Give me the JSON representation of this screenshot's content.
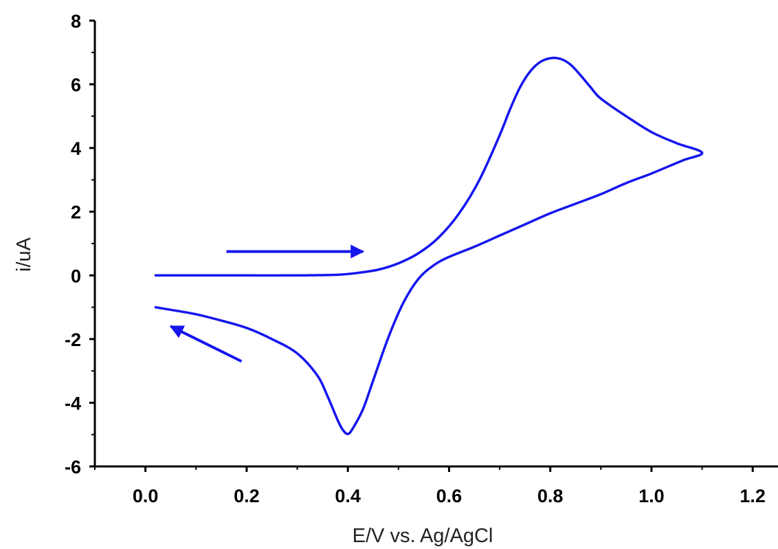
{
  "chart_data": {
    "type": "line",
    "title": "",
    "xlabel": "E/V vs. Ag/AgCl",
    "ylabel": "i/uA",
    "xlim": [
      -0.1,
      1.25
    ],
    "ylim": [
      -6,
      8
    ],
    "x_ticks": [
      "0.0",
      "0.2",
      "0.4",
      "0.6",
      "0.8",
      "1.0",
      "1.2"
    ],
    "y_ticks": [
      "-6",
      "-4",
      "-2",
      "0",
      "2",
      "4",
      "6",
      "8"
    ],
    "grid": false,
    "legend": "none",
    "series": [
      {
        "color": "#1515ee",
        "x": [
          0.02,
          0.1,
          0.2,
          0.3,
          0.38,
          0.42,
          0.46,
          0.5,
          0.54,
          0.58,
          0.62,
          0.66,
          0.7,
          0.72,
          0.74,
          0.76,
          0.78,
          0.8,
          0.82,
          0.84,
          0.86,
          0.88,
          0.9,
          0.95,
          1.0,
          1.05,
          1.1,
          1.06,
          1.0,
          0.95,
          0.9,
          0.85,
          0.8,
          0.75,
          0.7,
          0.65,
          0.6,
          0.57,
          0.54,
          0.51,
          0.48,
          0.45,
          0.43,
          0.41,
          0.4,
          0.39,
          0.38,
          0.36,
          0.34,
          0.3,
          0.25,
          0.2,
          0.15,
          0.1,
          0.05,
          0.02
        ],
        "y": [
          0.0,
          0.0,
          0.0,
          0.0,
          0.02,
          0.08,
          0.18,
          0.38,
          0.7,
          1.2,
          1.95,
          3.0,
          4.4,
          5.2,
          5.9,
          6.4,
          6.7,
          6.82,
          6.8,
          6.62,
          6.28,
          5.9,
          5.55,
          5.0,
          4.5,
          4.15,
          3.85,
          3.6,
          3.2,
          2.9,
          2.55,
          2.25,
          1.95,
          1.6,
          1.25,
          0.9,
          0.58,
          0.32,
          -0.1,
          -0.85,
          -1.95,
          -3.3,
          -4.2,
          -4.8,
          -4.98,
          -4.85,
          -4.55,
          -3.8,
          -3.15,
          -2.45,
          -2.0,
          -1.65,
          -1.42,
          -1.22,
          -1.08,
          -1.0
        ]
      }
    ],
    "annotations": [
      {
        "type": "arrow",
        "direction": "forward scan",
        "from": [
          0.16,
          0.75
        ],
        "to": [
          0.43,
          0.75
        ]
      },
      {
        "type": "arrow",
        "direction": "reverse scan",
        "from": [
          0.19,
          -2.7
        ],
        "to": [
          0.05,
          -1.6
        ]
      }
    ]
  }
}
